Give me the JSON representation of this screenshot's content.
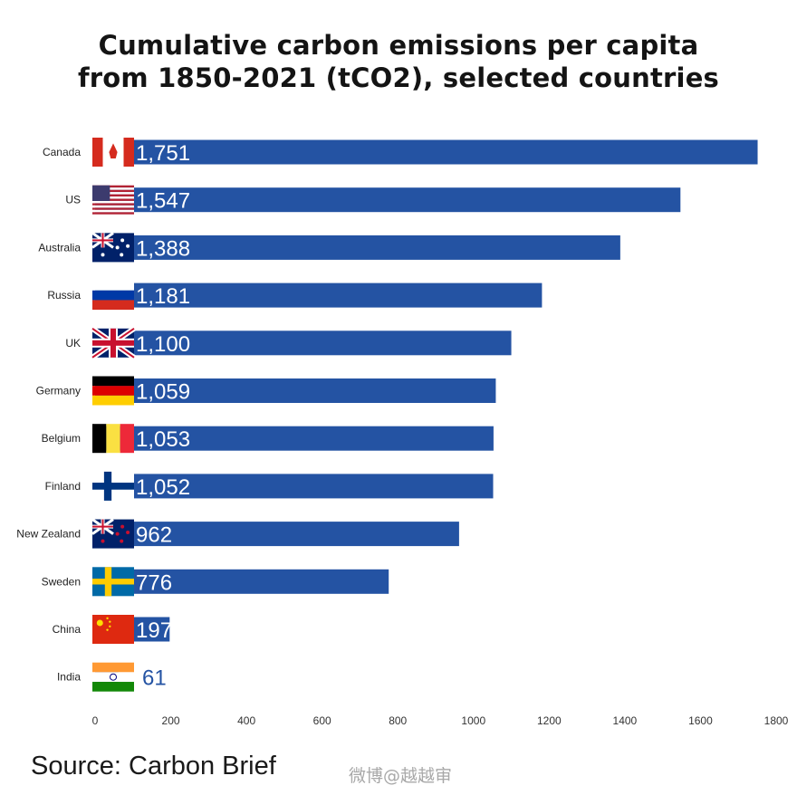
{
  "title_line1": "Cumulative carbon emissions per capita",
  "title_line2": "from 1850-2021 (tCO2), selected countries",
  "source": "Source: Carbon Brief",
  "watermark": "微博@越越审",
  "colors": {
    "bar": "#2453a3",
    "bar_text": "#ffffff",
    "outside_text": "#2453a3"
  },
  "chart_data": {
    "type": "bar",
    "orientation": "horizontal",
    "title": "Cumulative carbon emissions per capita from 1850-2021 (tCO2), selected countries",
    "categories": [
      "Canada",
      "US",
      "Australia",
      "Russia",
      "UK",
      "Germany",
      "Belgium",
      "Finland",
      "New Zealand",
      "Sweden",
      "China",
      "India"
    ],
    "values": [
      1751,
      1547,
      1388,
      1181,
      1100,
      1059,
      1053,
      1052,
      962,
      776,
      197,
      61
    ],
    "value_labels": [
      "1,751",
      "1,547",
      "1,388",
      "1,181",
      "1,100",
      "1,059",
      "1,053",
      "1,052",
      "962",
      "776",
      "197",
      "61"
    ],
    "flags": [
      "canada-flag",
      "us-flag",
      "australia-flag",
      "russia-flag",
      "uk-flag",
      "germany-flag",
      "belgium-flag",
      "finland-flag",
      "new-zealand-flag",
      "sweden-flag",
      "china-flag",
      "india-flag"
    ],
    "xlim": [
      0,
      1800
    ],
    "xticks": [
      0,
      200,
      400,
      600,
      800,
      1000,
      1200,
      1400,
      1600,
      1800
    ],
    "grid": false,
    "legend": "none"
  }
}
